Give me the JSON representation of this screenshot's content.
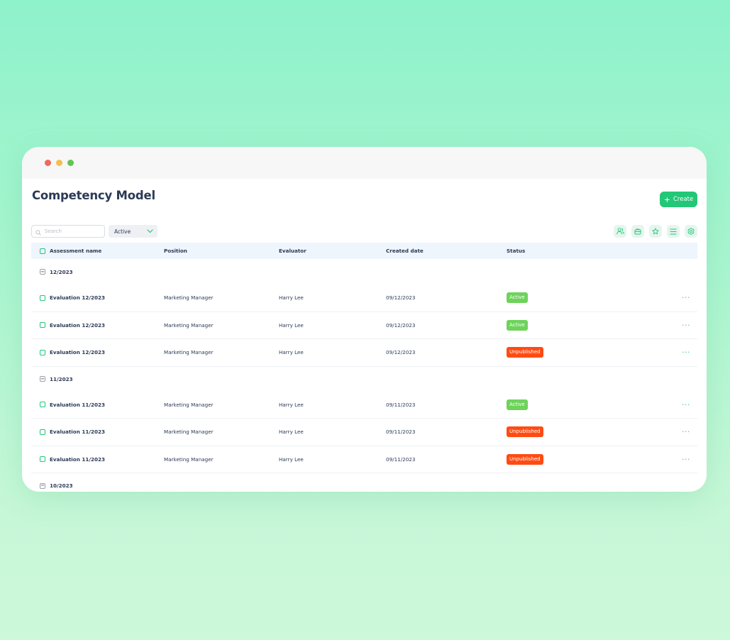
{
  "page": {
    "title": "Competency Model",
    "create_label": "Create"
  },
  "toolbar": {
    "search_placeholder": "Search",
    "status_filter": "Active",
    "icons": [
      "users-icon",
      "bag-icon",
      "star-icon",
      "list-icon",
      "settings-icon"
    ]
  },
  "table": {
    "headers": {
      "name": "Assessment name",
      "position": "Position",
      "evaluator": "Evaluator",
      "created": "Created date",
      "status": "Status"
    },
    "groups": [
      {
        "label": "12/2023",
        "rows": [
          {
            "name": "Evaluation 12/2023",
            "position": "Marketing Manager",
            "evaluator": "Harry Lee",
            "created": "09/12/2023",
            "status": "Active",
            "more": "···"
          },
          {
            "name": "Evaluation 12/2023",
            "position": "Marketing Manager",
            "evaluator": "Harry Lee",
            "created": "09/12/2023",
            "status": "Active",
            "more": "···"
          },
          {
            "name": "Evaluation 12/2023",
            "position": "Marketing Manager",
            "evaluator": "Harry Lee",
            "created": "09/12/2023",
            "status": "Unpublished",
            "more": "···"
          }
        ]
      },
      {
        "label": "11/2023",
        "rows": [
          {
            "name": "Evaluation 11/2023",
            "position": "Marketing Manager",
            "evaluator": "Harry Lee",
            "created": "09/11/2023",
            "status": "Active",
            "more": "···"
          },
          {
            "name": "Evaluation 11/2023",
            "position": "Marketing Manager",
            "evaluator": "Harry Lee",
            "created": "09/11/2023",
            "status": "Unpublished",
            "more": "···"
          },
          {
            "name": "Evaluation 11/2023",
            "position": "Marketing Manager",
            "evaluator": "Harry Lee",
            "created": "09/11/2023",
            "status": "Unpublished",
            "more": "···"
          }
        ]
      },
      {
        "label": "10/2023",
        "rows": []
      }
    ]
  },
  "colors": {
    "accent": "#22c777",
    "active": "#6dd35a",
    "unpublished": "#ff4b12",
    "title": "#2c3a57"
  }
}
